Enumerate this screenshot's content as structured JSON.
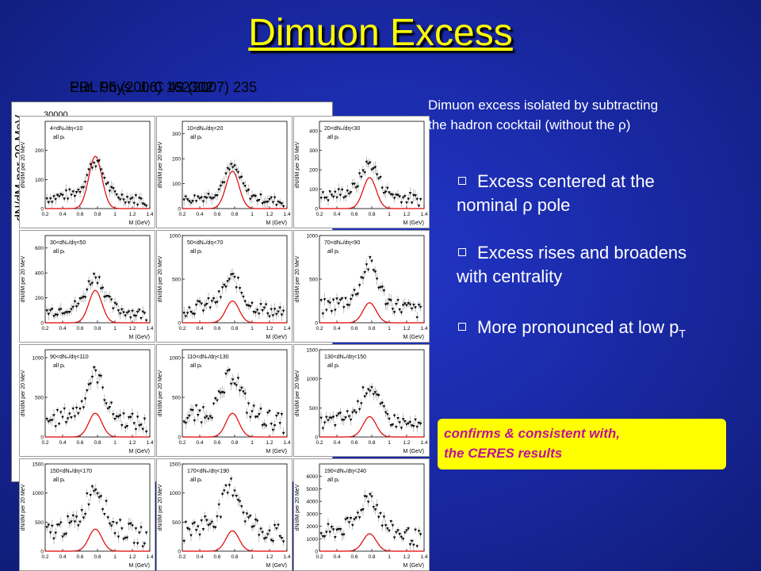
{
  "title": "Dimuon Excess",
  "refs": [
    "PRL 96 (2006) 162302",
    "Eur. Phys. J. C 49 (2007) 235"
  ],
  "back_figure": {
    "ylabel": "dN/dM per 20 MeV",
    "tick": "30000"
  },
  "intro": [
    "Dimuon excess isolated by subtracting",
    "the hadron cocktail (without the ρ)"
  ],
  "bullets": [
    {
      "text": "Excess centered at the",
      "text2": "nominal ρ pole"
    },
    {
      "text": "Excess rises and broadens",
      "text2": "with centrality"
    },
    {
      "text": "More pronounced at low p",
      "sub": "T"
    }
  ],
  "callout": [
    "confirms & consistent  with,",
    "the CERES results"
  ],
  "colors": {
    "title": "#ffff00",
    "callout_bg": "#ffff00",
    "callout_text": "#c0129a",
    "fit": "#e00000"
  },
  "chart_data": [
    {
      "type": "scatter",
      "label": "4<dNₙ/dη<10",
      "sublabel": "all pₜ",
      "xlabel": "M (GeV)",
      "ylabel": "dN/dM per 20 MeV",
      "xlim": [
        0.2,
        1.4
      ],
      "ylim": [
        0,
        300
      ],
      "yticks": [
        0,
        100,
        200
      ],
      "xticks": [
        0.2,
        0.4,
        0.6,
        0.8,
        1,
        1.2,
        1.4
      ],
      "peak": 190,
      "base": 60,
      "fitpeak": 180
    },
    {
      "type": "scatter",
      "label": "10<dNₙ/dη<20",
      "sublabel": "all pₜ",
      "xlabel": "M (GeV)",
      "ylabel": "dN/dM per 20 MeV",
      "xlim": [
        0.2,
        1.4
      ],
      "ylim": [
        0,
        350
      ],
      "yticks": [
        0,
        100,
        200,
        300
      ],
      "xticks": [
        0.2,
        0.4,
        0.6,
        0.8,
        1,
        1.2,
        1.4
      ],
      "peak": 200,
      "base": 60,
      "fitpeak": 150
    },
    {
      "type": "scatter",
      "label": "20<dNₙ/dη<30",
      "sublabel": "all pₜ",
      "xlabel": "M (GeV)",
      "ylabel": "dN/dM per 20 MeV",
      "xlim": [
        0.2,
        1.4
      ],
      "ylim": [
        0,
        450
      ],
      "yticks": [
        0,
        100,
        200,
        300,
        400
      ],
      "xticks": [
        0.2,
        0.4,
        0.6,
        0.8,
        1,
        1.2,
        1.4
      ],
      "peak": 250,
      "base": 100,
      "fitpeak": 160
    },
    {
      "type": "scatter",
      "label": "30<dNₙ/dη<50",
      "sublabel": "all pₜ",
      "xlabel": "M (GeV)",
      "ylabel": "dN/dM per 20 MeV",
      "xlim": [
        0.2,
        1.4
      ],
      "ylim": [
        0,
        700
      ],
      "yticks": [
        0,
        200,
        400,
        600
      ],
      "xticks": [
        0.2,
        0.4,
        0.6,
        0.8,
        1,
        1.2,
        1.4
      ],
      "peak": 420,
      "base": 150,
      "fitpeak": 260
    },
    {
      "type": "scatter",
      "label": "50<dNₙ/dη<70",
      "sublabel": "all pₜ",
      "xlabel": "M (GeV)",
      "ylabel": "dN/dM per 20 MeV",
      "xlim": [
        0.2,
        1.4
      ],
      "ylim": [
        0,
        1000
      ],
      "yticks": [
        0,
        500,
        1000
      ],
      "xticks": [
        0.2,
        0.4,
        0.6,
        0.8,
        1,
        1.2,
        1.4
      ],
      "peak": 500,
      "base": 250,
      "fitpeak": 250
    },
    {
      "type": "scatter",
      "label": "70<dNₙ/dη<90",
      "sublabel": "all pₜ",
      "xlabel": "M (GeV)",
      "ylabel": "dN/dM per 20 MeV",
      "xlim": [
        0.2,
        1.4
      ],
      "ylim": [
        0,
        1000
      ],
      "yticks": [
        0,
        500,
        1000
      ],
      "xticks": [
        0.2,
        0.4,
        0.6,
        0.8,
        1,
        1.2,
        1.4
      ],
      "peak": 700,
      "base": 300,
      "fitpeak": 230
    },
    {
      "type": "scatter",
      "label": "90<dNₙ/dη<110",
      "sublabel": "all pₜ",
      "xlabel": "M (GeV)",
      "ylabel": "dN/dM per 20 MeV",
      "xlim": [
        0.2,
        1.4
      ],
      "ylim": [
        0,
        1100
      ],
      "yticks": [
        0,
        500,
        1000
      ],
      "xticks": [
        0.2,
        0.4,
        0.6,
        0.8,
        1,
        1.2,
        1.4
      ],
      "peak": 850,
      "base": 350,
      "fitpeak": 300
    },
    {
      "type": "scatter",
      "label": "110<dNₙ/dη<130",
      "sublabel": "all pₜ",
      "xlabel": "M (GeV)",
      "ylabel": "dN/dM per 20 MeV",
      "xlim": [
        0.2,
        1.4
      ],
      "ylim": [
        0,
        1100
      ],
      "yticks": [
        0,
        500,
        1000
      ],
      "xticks": [
        0.2,
        0.4,
        0.6,
        0.8,
        1,
        1.2,
        1.4
      ],
      "peak": 750,
      "base": 400,
      "fitpeak": 300
    },
    {
      "type": "scatter",
      "label": "130<dNₙ/dη<150",
      "sublabel": "all pₜ",
      "xlabel": "M (GeV)",
      "ylabel": "dN/dM per 20 MeV",
      "xlim": [
        0.2,
        1.4
      ],
      "ylim": [
        0,
        1500
      ],
      "yticks": [
        0,
        500,
        1000,
        1500
      ],
      "xticks": [
        0.2,
        0.4,
        0.6,
        0.8,
        1,
        1.2,
        1.4
      ],
      "peak": 900,
      "base": 400,
      "fitpeak": 350
    },
    {
      "type": "scatter",
      "label": "150<dNₙ/dη<170",
      "sublabel": "all pₜ",
      "xlabel": "M (GeV)",
      "ylabel": "dN/dM per 20 MeV",
      "xlim": [
        0.2,
        1.4
      ],
      "ylim": [
        0,
        1500
      ],
      "yticks": [
        0,
        500,
        1000,
        1500
      ],
      "xticks": [
        0.2,
        0.4,
        0.6,
        0.8,
        1,
        1.2,
        1.4
      ],
      "peak": 1100,
      "base": 550,
      "fitpeak": 380
    },
    {
      "type": "scatter",
      "label": "170<dNₙ/dη<190",
      "sublabel": "all pₜ",
      "xlabel": "M (GeV)",
      "ylabel": "dN/dM per 20 MeV",
      "xlim": [
        0.2,
        1.4
      ],
      "ylim": [
        0,
        1500
      ],
      "yticks": [
        0,
        500,
        1000,
        1500
      ],
      "xticks": [
        0.2,
        0.4,
        0.6,
        0.8,
        1,
        1.2,
        1.4
      ],
      "peak": 1000,
      "base": 600,
      "fitpeak": 350
    },
    {
      "type": "scatter",
      "label": "190<dNₙ/dη<240",
      "sublabel": "all pₜ",
      "xlabel": "M (GeV)",
      "ylabel": "dN/dM per 20 MeV",
      "xlim": [
        0.2,
        1.4
      ],
      "ylim": [
        0,
        7000
      ],
      "yticks": [
        0,
        1000,
        2000,
        3000,
        4000,
        5000,
        6000
      ],
      "xticks": [
        0.2,
        0.4,
        0.6,
        0.8,
        1,
        1.2,
        1.4
      ],
      "peak": 4200,
      "base": 2300,
      "fitpeak": 1400
    }
  ]
}
